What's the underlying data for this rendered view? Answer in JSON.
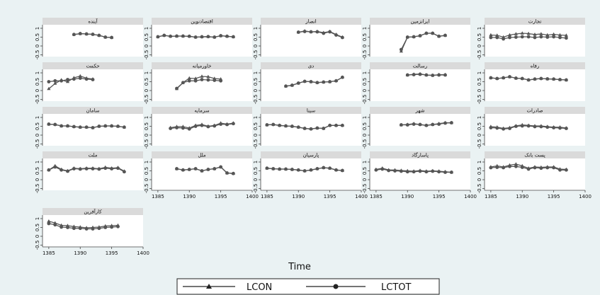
{
  "chart_data": {
    "type": "line",
    "xlabel": "Time",
    "x": [
      1385,
      1386,
      1387,
      1388,
      1389,
      1390,
      1391,
      1392,
      1393,
      1394,
      1395,
      1396,
      1397
    ],
    "xticks": [
      1385,
      1390,
      1395,
      1400
    ],
    "xlim": [
      1384,
      1400
    ],
    "yticks": [
      1,
      0.5,
      0,
      -0.5
    ],
    "ylim": [
      -0.6,
      1.2
    ],
    "legend": {
      "position": "bottom",
      "entries": [
        "LCON",
        "LCTOT"
      ]
    },
    "panels": [
      {
        "title": "آینده",
        "series": [
          {
            "name": "LCON",
            "values": [
              null,
              null,
              null,
              null,
              0.65,
              0.7,
              0.68,
              0.66,
              0.6,
              0.5,
              0.48,
              null,
              null
            ]
          },
          {
            "name": "LCTOT",
            "values": [
              null,
              null,
              null,
              null,
              0.65,
              0.7,
              0.68,
              0.66,
              0.6,
              0.5,
              0.48,
              null,
              null
            ]
          }
        ]
      },
      {
        "title": "اقتصادنوین",
        "series": [
          {
            "name": "LCON",
            "values": [
              0.52,
              0.6,
              0.55,
              0.56,
              0.56,
              0.55,
              0.5,
              0.52,
              0.53,
              0.5,
              0.58,
              0.55,
              0.52
            ]
          },
          {
            "name": "LCTOT",
            "values": [
              0.52,
              0.6,
              0.55,
              0.56,
              0.56,
              0.55,
              0.5,
              0.52,
              0.53,
              0.5,
              0.58,
              0.55,
              0.52
            ]
          }
        ]
      },
      {
        "title": "انصار",
        "series": [
          {
            "name": "LCON",
            "values": [
              null,
              null,
              null,
              null,
              null,
              0.78,
              0.85,
              0.8,
              0.82,
              0.75,
              0.82,
              0.65,
              0.5
            ]
          },
          {
            "name": "LCTOT",
            "values": [
              null,
              null,
              null,
              null,
              null,
              0.78,
              0.82,
              0.8,
              0.8,
              0.72,
              0.8,
              0.62,
              0.48
            ]
          }
        ]
      },
      {
        "title": "ایرانزمین",
        "series": [
          {
            "name": "LCON",
            "values": [
              null,
              null,
              null,
              null,
              -0.3,
              0.5,
              0.52,
              0.58,
              0.72,
              0.72,
              0.55,
              0.6,
              null
            ]
          },
          {
            "name": "LCTOT",
            "values": [
              null,
              null,
              null,
              null,
              -0.2,
              0.5,
              0.52,
              0.58,
              0.72,
              0.72,
              0.55,
              0.6,
              null
            ]
          }
        ]
      },
      {
        "title": "تجارت",
        "series": [
          {
            "name": "LCON",
            "values": [
              0.62,
              0.6,
              0.5,
              0.62,
              0.68,
              0.72,
              0.7,
              0.65,
              0.68,
              0.62,
              0.66,
              0.62,
              0.6
            ]
          },
          {
            "name": "LCTOT",
            "values": [
              0.48,
              0.48,
              0.4,
              0.48,
              0.5,
              0.52,
              0.52,
              0.48,
              0.52,
              0.5,
              0.52,
              0.48,
              0.45
            ]
          }
        ]
      },
      {
        "title": "حکمت",
        "series": [
          {
            "name": "LCON",
            "values": [
              0.1,
              0.4,
              0.6,
              0.5,
              0.72,
              0.82,
              0.7,
              0.65,
              null,
              null,
              null,
              null,
              null
            ]
          },
          {
            "name": "LCTOT",
            "values": [
              0.5,
              0.55,
              0.55,
              0.62,
              0.65,
              0.7,
              0.65,
              0.62,
              null,
              null,
              null,
              null,
              null
            ]
          }
        ]
      },
      {
        "title": "خاورمیانه",
        "series": [
          {
            "name": "LCON",
            "values": [
              null,
              null,
              null,
              0.1,
              0.45,
              0.7,
              0.68,
              0.8,
              0.78,
              0.68,
              0.65,
              null,
              null
            ]
          },
          {
            "name": "LCTOT",
            "values": [
              null,
              null,
              null,
              0.12,
              0.45,
              0.55,
              0.55,
              0.62,
              0.6,
              0.58,
              0.55,
              null,
              null
            ]
          }
        ]
      },
      {
        "title": "دی",
        "series": [
          {
            "name": "LCON",
            "values": [
              null,
              null,
              null,
              0.25,
              0.3,
              0.42,
              0.52,
              0.5,
              0.45,
              0.48,
              0.5,
              0.55,
              0.75
            ]
          },
          {
            "name": "LCTOT",
            "values": [
              null,
              null,
              null,
              0.25,
              0.3,
              0.42,
              0.52,
              0.5,
              0.45,
              0.48,
              0.5,
              0.55,
              0.75
            ]
          }
        ]
      },
      {
        "title": "رسالت",
        "series": [
          {
            "name": "LCON",
            "values": [
              null,
              null,
              null,
              null,
              null,
              0.88,
              0.92,
              0.94,
              0.88,
              0.86,
              0.9,
              0.9,
              null
            ]
          },
          {
            "name": "LCTOT",
            "values": [
              null,
              null,
              null,
              null,
              null,
              0.88,
              0.9,
              0.92,
              0.88,
              0.86,
              0.88,
              0.88,
              null
            ]
          }
        ]
      },
      {
        "title": "رفاه",
        "series": [
          {
            "name": "LCON",
            "values": [
              0.72,
              0.68,
              0.72,
              0.78,
              0.7,
              0.68,
              0.6,
              0.65,
              0.68,
              0.66,
              0.65,
              0.62,
              0.6
            ]
          },
          {
            "name": "LCTOT",
            "values": [
              0.72,
              0.68,
              0.72,
              0.78,
              0.7,
              0.68,
              0.6,
              0.65,
              0.68,
              0.66,
              0.65,
              0.62,
              0.6
            ]
          }
        ]
      },
      {
        "title": "سامان",
        "series": [
          {
            "name": "LCON",
            "values": [
              0.62,
              0.6,
              0.52,
              0.52,
              0.48,
              0.45,
              0.45,
              0.42,
              0.5,
              0.52,
              0.52,
              0.5,
              0.45
            ]
          },
          {
            "name": "LCTOT",
            "values": [
              0.62,
              0.6,
              0.52,
              0.52,
              0.48,
              0.45,
              0.45,
              0.42,
              0.5,
              0.52,
              0.52,
              0.5,
              0.45
            ]
          }
        ]
      },
      {
        "title": "سرمایه",
        "series": [
          {
            "name": "LCON",
            "values": [
              null,
              null,
              0.42,
              0.48,
              0.48,
              0.4,
              0.55,
              0.6,
              0.5,
              0.55,
              0.68,
              0.62,
              0.68
            ]
          },
          {
            "name": "LCTOT",
            "values": [
              null,
              null,
              0.38,
              0.42,
              0.4,
              0.35,
              0.5,
              0.55,
              0.48,
              0.52,
              0.62,
              0.6,
              0.65
            ]
          }
        ]
      },
      {
        "title": "سینا",
        "series": [
          {
            "name": "LCON",
            "values": [
              0.58,
              0.6,
              0.55,
              0.52,
              0.5,
              0.45,
              0.38,
              0.35,
              0.4,
              0.38,
              0.55,
              0.55,
              0.55
            ]
          },
          {
            "name": "LCTOT",
            "values": [
              0.58,
              0.6,
              0.55,
              0.52,
              0.5,
              0.45,
              0.38,
              0.35,
              0.4,
              0.38,
              0.55,
              0.55,
              0.55
            ]
          }
        ]
      },
      {
        "title": "شهر",
        "series": [
          {
            "name": "LCON",
            "values": [
              null,
              null,
              null,
              null,
              0.58,
              0.6,
              0.65,
              0.6,
              0.55,
              0.6,
              0.65,
              0.7,
              0.7
            ]
          },
          {
            "name": "LCTOT",
            "values": [
              null,
              null,
              null,
              null,
              0.58,
              0.58,
              0.62,
              0.6,
              0.55,
              0.6,
              0.62,
              0.68,
              0.7
            ]
          }
        ]
      },
      {
        "title": "صادرات",
        "series": [
          {
            "name": "LCON",
            "values": [
              0.48,
              0.45,
              0.38,
              0.42,
              0.52,
              0.58,
              0.55,
              0.52,
              0.52,
              0.48,
              0.45,
              0.45,
              0.4
            ]
          },
          {
            "name": "LCTOT",
            "values": [
              0.42,
              0.4,
              0.35,
              0.38,
              0.5,
              0.52,
              0.52,
              0.48,
              0.48,
              0.45,
              0.42,
              0.4,
              0.38
            ]
          }
        ]
      },
      {
        "title": "ملت",
        "series": [
          {
            "name": "LCON",
            "values": [
              0.55,
              0.78,
              0.58,
              0.5,
              0.65,
              0.62,
              0.65,
              0.65,
              0.62,
              0.7,
              0.65,
              0.68,
              0.48
            ]
          },
          {
            "name": "LCTOT",
            "values": [
              0.55,
              0.72,
              0.55,
              0.48,
              0.62,
              0.6,
              0.62,
              0.62,
              0.6,
              0.65,
              0.62,
              0.65,
              0.45
            ]
          }
        ]
      },
      {
        "title": "ملل",
        "series": [
          {
            "name": "LCON",
            "values": [
              null,
              null,
              null,
              0.62,
              0.55,
              0.58,
              0.62,
              0.5,
              0.58,
              0.62,
              0.72,
              0.38,
              0.35
            ]
          },
          {
            "name": "LCTOT",
            "values": [
              null,
              null,
              null,
              0.62,
              0.55,
              0.58,
              0.62,
              0.5,
              0.58,
              0.62,
              0.72,
              0.38,
              0.35
            ]
          }
        ]
      },
      {
        "title": "پارسیان",
        "series": [
          {
            "name": "LCON",
            "values": [
              0.65,
              0.62,
              0.6,
              0.6,
              0.58,
              0.55,
              0.5,
              0.55,
              0.62,
              0.68,
              0.65,
              0.55,
              0.52
            ]
          },
          {
            "name": "LCTOT",
            "values": [
              0.65,
              0.62,
              0.6,
              0.6,
              0.58,
              0.55,
              0.5,
              0.55,
              0.62,
              0.68,
              0.65,
              0.55,
              0.52
            ]
          }
        ]
      },
      {
        "title": "پاسارگاد",
        "series": [
          {
            "name": "LCON",
            "values": [
              0.58,
              0.65,
              0.55,
              0.55,
              0.52,
              0.5,
              0.48,
              0.52,
              0.48,
              0.5,
              0.48,
              0.45,
              0.42
            ]
          },
          {
            "name": "LCTOT",
            "values": [
              0.55,
              0.6,
              0.52,
              0.5,
              0.48,
              0.45,
              0.45,
              0.48,
              0.45,
              0.48,
              0.45,
              0.42,
              0.42
            ]
          }
        ]
      },
      {
        "title": "پست بانک",
        "series": [
          {
            "name": "LCON",
            "values": [
              0.72,
              0.78,
              0.72,
              0.82,
              0.88,
              0.78,
              0.65,
              0.72,
              0.7,
              0.72,
              0.72,
              0.6,
              0.58
            ]
          },
          {
            "name": "LCTOT",
            "values": [
              0.68,
              0.7,
              0.68,
              0.75,
              0.75,
              0.7,
              0.6,
              0.68,
              0.65,
              0.68,
              0.68,
              0.55,
              0.55
            ]
          }
        ]
      },
      {
        "title": "کارآفرین",
        "series": [
          {
            "name": "LCON",
            "values": [
              0.85,
              0.75,
              0.62,
              0.6,
              0.55,
              0.52,
              0.48,
              0.5,
              0.52,
              0.58,
              0.6,
              0.62,
              null
            ]
          },
          {
            "name": "LCTOT",
            "values": [
              0.72,
              0.65,
              0.52,
              0.5,
              0.45,
              0.45,
              0.42,
              0.42,
              0.45,
              0.5,
              0.52,
              0.55,
              null
            ]
          }
        ]
      }
    ]
  }
}
